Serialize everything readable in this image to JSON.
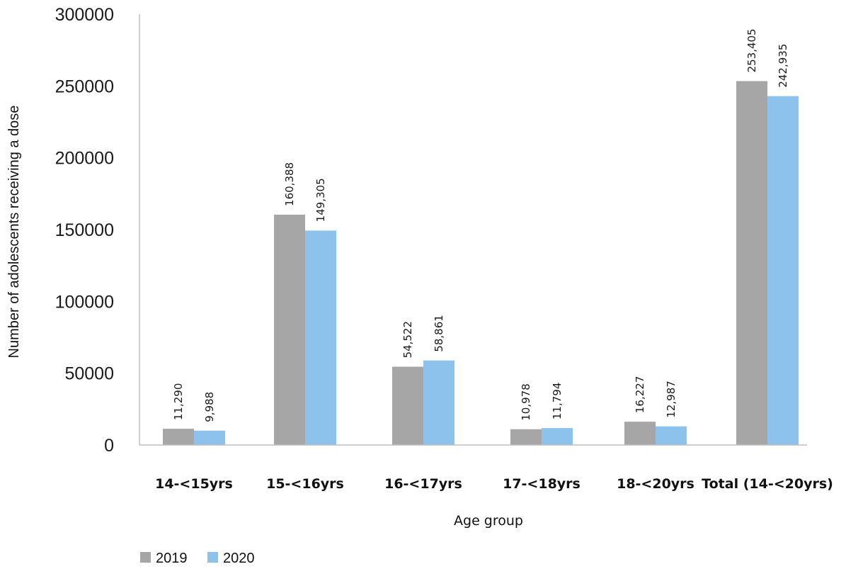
{
  "chart_data": {
    "type": "bar",
    "categories": [
      "14-<15yrs",
      "15-<16yrs",
      "16-<17yrs",
      "17-<18yrs",
      "18-<20yrs",
      "Total (14-<20yrs)"
    ],
    "series": [
      {
        "name": "2019",
        "color": "#a6a6a6",
        "values": [
          11290,
          160388,
          54522,
          10978,
          16227,
          253405
        ],
        "labels": [
          "11,290",
          "160,388",
          "54,522",
          "10,978",
          "16,227",
          "253,405"
        ]
      },
      {
        "name": "2020",
        "color": "#8dc2ec",
        "values": [
          9988,
          149305,
          58861,
          11794,
          12987,
          242935
        ],
        "labels": [
          "9,988",
          "149,305",
          "58,861",
          "11,794",
          "12,987",
          "242,935"
        ]
      }
    ],
    "title": "",
    "xlabel": "Age group",
    "ylabel": "Number of adolescents receiving a dose",
    "ylim": [
      0,
      300000
    ],
    "yticks": [
      "0",
      "50000",
      "100000",
      "150000",
      "200000",
      "250000",
      "300000"
    ],
    "grid": false,
    "legend_position": "bottom-left"
  }
}
